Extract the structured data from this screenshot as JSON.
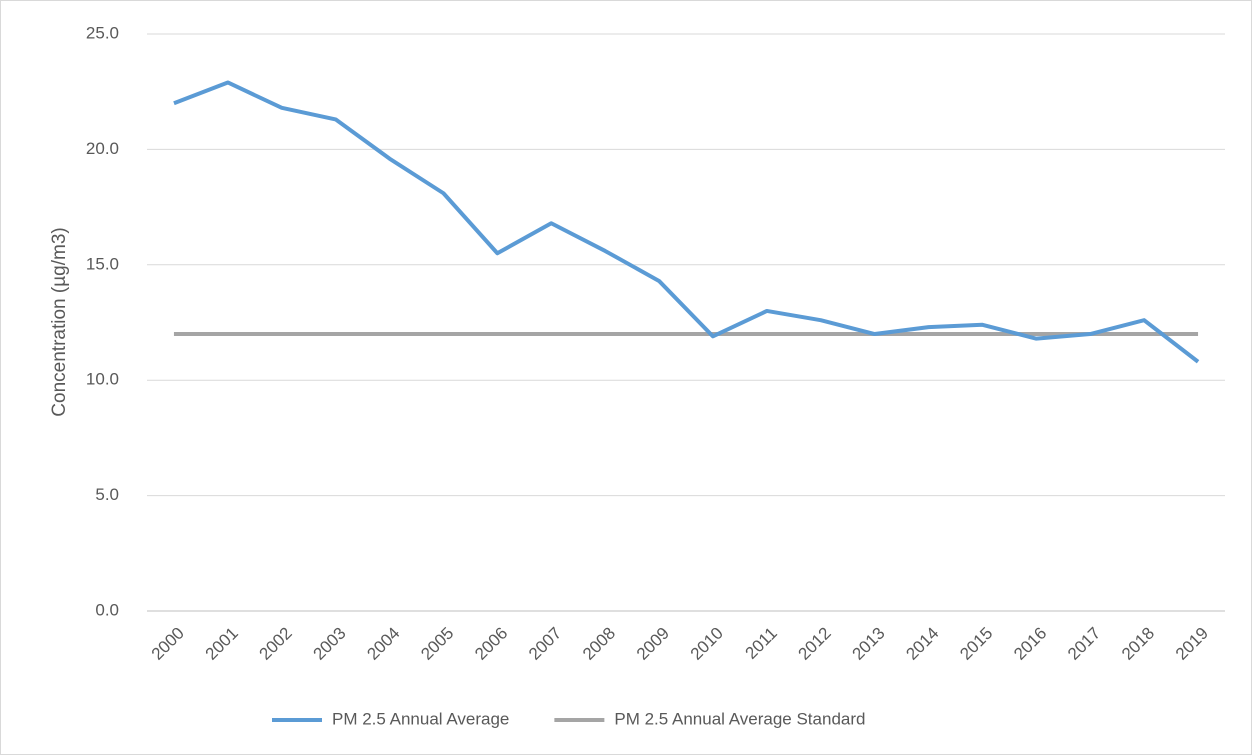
{
  "chart_data": {
    "type": "line",
    "y_label": "Concentration (µg/m3)",
    "categories": [
      "2000",
      "2001",
      "2002",
      "2003",
      "2004",
      "2005",
      "2006",
      "2007",
      "2008",
      "2009",
      "2010",
      "2011",
      "2012",
      "2013",
      "2014",
      "2015",
      "2016",
      "2017",
      "2018",
      "2019"
    ],
    "series": [
      {
        "name": "PM 2.5 Annual Average",
        "color": "#5b9bd5",
        "values": [
          22.0,
          22.9,
          21.8,
          21.3,
          19.6,
          18.1,
          15.5,
          16.8,
          15.6,
          14.3,
          11.9,
          13.0,
          12.6,
          12.0,
          12.3,
          12.4,
          11.8,
          12.0,
          12.6,
          10.8
        ]
      },
      {
        "name": "PM 2.5 Annual Average Standard",
        "color": "#a5a5a5",
        "values": [
          12.0,
          12.0,
          12.0,
          12.0,
          12.0,
          12.0,
          12.0,
          12.0,
          12.0,
          12.0,
          12.0,
          12.0,
          12.0,
          12.0,
          12.0,
          12.0,
          12.0,
          12.0,
          12.0,
          12.0
        ]
      }
    ],
    "ylim": [
      0,
      25
    ],
    "yticks": [
      {
        "value": 0,
        "label": "0.0"
      },
      {
        "value": 5,
        "label": "5.0"
      },
      {
        "value": 10,
        "label": "10.0"
      },
      {
        "value": 15,
        "label": "15.0"
      },
      {
        "value": 20,
        "label": "20.0"
      },
      {
        "value": 25,
        "label": "25.0"
      }
    ],
    "grid": true,
    "legend": "bottom"
  }
}
